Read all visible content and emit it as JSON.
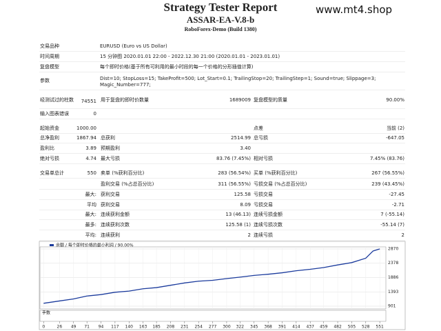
{
  "header": {
    "title": "Strategy Tester Report",
    "subtitle": "ASSAR-EA-V.8-b",
    "server": "RoboForex-Demo (Build 1380)",
    "watermark": "www.mt4.shop"
  },
  "info": [
    {
      "label": "交易品种",
      "value": "EURUSD (Euro vs US Dollar)"
    },
    {
      "label": "时间周期",
      "value": "15 分钟图 2020.01.01 22:00 - 2022.12.30 21:00 (2020.01.01 - 2023.01.01)"
    },
    {
      "label": "复盘模型",
      "value": "每个即时价格(基于所有可利用的最小时段的每一个价格的分形插值计算)"
    },
    {
      "label": "参数",
      "value": "Dist=10; StopLoss=15; TakeProfit=500; Lot_Start=0.1; TrailingStop=20; TrailingStep=1; Sound=true; Slippage=3; Magic_Number=777;"
    }
  ],
  "stats": [
    {
      "a_label": "经测试过的柱数",
      "a_value": "74551",
      "b_label": "用于复盘的即时价数量",
      "b_value": "1689009",
      "c_label": "复盘模型的质量",
      "c_value": "90.00%"
    },
    {
      "a_label": "输入图表错误",
      "a_value": "0"
    },
    {
      "a_label": "起始资金",
      "a_value": "1000.00",
      "c_label": "点差",
      "c_value": "当前 (2)"
    },
    {
      "a_label": "总净盈利",
      "a_value": "1867.94",
      "b_label": "总获利",
      "b_value": "2514.99",
      "c_label": "总亏损",
      "c_value": "-647.05"
    },
    {
      "a_label": "盈利比",
      "a_value": "3.89",
      "b_label": "预期盈利",
      "b_value": "3.40"
    },
    {
      "a_label": "绝对亏损",
      "a_value": "4.74",
      "b_label": "最大亏损",
      "b_value": "83.76 (7.45%)",
      "c_label": "相对亏损",
      "c_value": "7.45% (83.76)"
    },
    {
      "a_label": "交易单总计",
      "a_value": "550",
      "b_label": "卖单 (%获利百分比)",
      "b_value": "283 (56.54%)",
      "c_label": "买单 (%获利百分比)",
      "c_value": "267 (56.55%)"
    },
    {
      "b_label": "盈利交易 (%占总百分比)",
      "b_value": "311 (56.55%)",
      "c_label": "亏损交易 (%占总百分比)",
      "c_value": "239 (43.45%)"
    },
    {
      "group": "最大:",
      "b_label": "获利交易",
      "b_value": "125.58",
      "c_label": "亏损交易",
      "c_value": "-27.45"
    },
    {
      "group": "平均",
      "b_label": "获利交易",
      "b_value": "8.09",
      "c_label": "亏损交易",
      "c_value": "-2.71"
    },
    {
      "group": "最大:",
      "b_label": "连续获利金额",
      "b_value": "13 (46.13)",
      "c_label": "连续亏损金额",
      "c_value": "7 (-55.14)"
    },
    {
      "group": "最多:",
      "b_label": "连续获利次数",
      "b_value": "125.58 (1)",
      "c_label": "连续亏损次数",
      "c_value": "-55.14 (7)"
    },
    {
      "group": "平均:",
      "b_label": "连续获利",
      "b_value": "2",
      "c_label": "连续亏损",
      "c_value": "2"
    }
  ],
  "chart_data": {
    "type": "line",
    "volume_label": "手数",
    "series": [
      {
        "name": "余额 / 每个即时价格的最小利润 / 90.00%",
        "color": "#1a3a9c",
        "x": [
          0,
          26,
          49,
          71,
          94,
          117,
          140,
          163,
          185,
          208,
          231,
          254,
          277,
          300,
          322,
          345,
          368,
          391,
          414,
          437,
          459,
          482,
          505,
          528,
          540,
          551
        ],
        "values": [
          1000,
          1080,
          1150,
          1250,
          1300,
          1380,
          1420,
          1500,
          1540,
          1620,
          1700,
          1760,
          1790,
          1850,
          1900,
          1960,
          2000,
          2050,
          2120,
          2170,
          2230,
          2320,
          2400,
          2550,
          2800,
          2870
        ]
      }
    ],
    "xlim": [
      -6,
      561
    ],
    "ylim": [
      806,
      2941
    ],
    "xticks": [
      0,
      26,
      49,
      71,
      94,
      117,
      140,
      163,
      185,
      208,
      231,
      254,
      277,
      300,
      322,
      345,
      368,
      391,
      414,
      437,
      459,
      482,
      505,
      528,
      551
    ],
    "yticks": [
      901,
      1393,
      1886,
      2378,
      2870
    ],
    "grid": true
  }
}
